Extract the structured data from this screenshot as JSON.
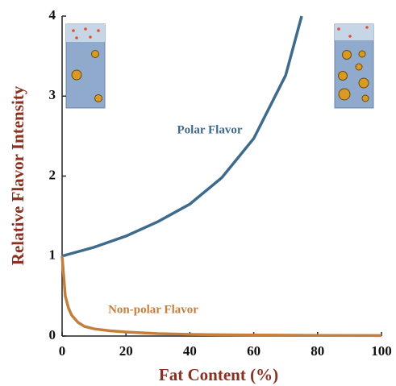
{
  "chart_data": {
    "type": "line",
    "xlabel": "Fat Content (%)",
    "ylabel": "Relative Flavor Intensity",
    "xlim": [
      0,
      100
    ],
    "ylim": [
      0,
      4
    ],
    "xticks": [
      0,
      20,
      40,
      60,
      80,
      100
    ],
    "yticks": [
      0,
      1,
      2,
      3,
      4
    ],
    "series": [
      {
        "name": "Polar Flavor",
        "color": "#3e6b8c",
        "x": [
          0,
          10,
          20,
          30,
          40,
          50,
          60,
          70,
          75
        ],
        "values": [
          1,
          1.11,
          1.25,
          1.43,
          1.65,
          1.98,
          2.47,
          3.26,
          4
        ]
      },
      {
        "name": "Non-polar Flavor",
        "color": "#c47f3c",
        "x": [
          0,
          1,
          2,
          3,
          5,
          7,
          10,
          15,
          20,
          30,
          40,
          60,
          80,
          100
        ],
        "values": [
          1,
          0.5,
          0.35,
          0.26,
          0.17,
          0.12,
          0.09,
          0.065,
          0.05,
          0.03,
          0.02,
          0.012,
          0.008,
          0.006
        ]
      }
    ]
  }
}
